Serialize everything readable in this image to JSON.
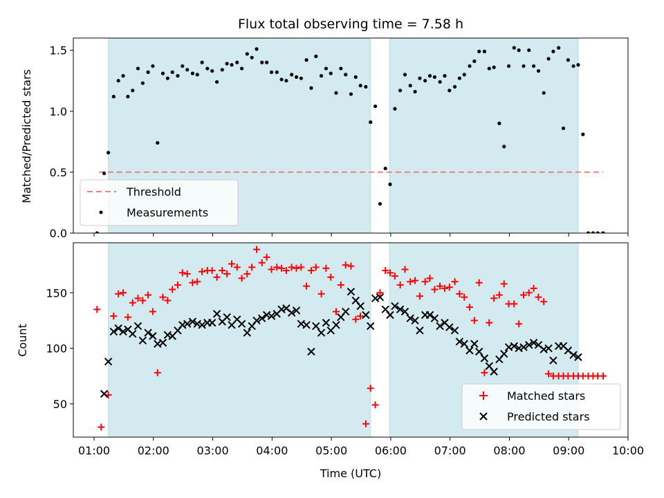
{
  "chart_data": [
    {
      "type": "scatter",
      "title": "Flux total observing time = 7.58 h",
      "xlabel": "",
      "ylabel": "Matched/Predicted stars",
      "xlim_hours": [
        0.65,
        10.0
      ],
      "ylim": [
        0,
        1.6
      ],
      "yticks": [
        0.0,
        0.5,
        1.0,
        1.5
      ],
      "yticklabels": [
        "0.0",
        "0.5",
        "1.0",
        "1.5"
      ],
      "shaded_intervals_hours": [
        [
          1.24,
          5.66
        ],
        [
          5.98,
          9.16
        ]
      ],
      "shade_color": "#d3eaf1",
      "legend_position": "lower-left",
      "threshold": {
        "name": "Threshold",
        "value": 0.5,
        "x_range_hours": [
          1.08,
          9.58
        ],
        "color": "#f08080"
      },
      "series": [
        {
          "name": "Measurements",
          "marker": "dot",
          "color": "#000000",
          "x_hours": [
            1.05,
            1.17,
            1.24,
            1.33,
            1.41,
            1.49,
            1.57,
            1.65,
            1.74,
            1.82,
            1.91,
            1.99,
            2.07,
            2.16,
            2.24,
            2.32,
            2.41,
            2.49,
            2.57,
            2.66,
            2.74,
            2.82,
            2.91,
            2.99,
            3.07,
            3.16,
            3.24,
            3.32,
            3.41,
            3.49,
            3.58,
            3.66,
            3.74,
            3.83,
            3.91,
            3.99,
            4.08,
            4.16,
            4.24,
            4.33,
            4.41,
            4.49,
            4.58,
            4.66,
            4.74,
            4.83,
            4.91,
            4.99,
            5.08,
            5.16,
            5.24,
            5.33,
            5.41,
            5.49,
            5.58,
            5.66,
            5.74,
            5.82,
            5.91,
            5.99,
            6.07,
            6.16,
            6.24,
            6.33,
            6.41,
            6.49,
            6.58,
            6.66,
            6.74,
            6.83,
            6.91,
            6.99,
            7.08,
            7.16,
            7.24,
            7.33,
            7.41,
            7.49,
            7.58,
            7.66,
            7.74,
            7.83,
            7.91,
            7.99,
            8.08,
            8.16,
            8.24,
            8.33,
            8.41,
            8.49,
            8.58,
            8.66,
            8.74,
            8.83,
            8.91,
            8.99,
            9.08,
            9.16,
            9.24,
            9.33,
            9.41,
            9.49,
            9.58
          ],
          "y": [
            0.0,
            0.49,
            0.66,
            1.12,
            1.25,
            1.29,
            1.12,
            1.17,
            1.35,
            1.23,
            1.32,
            1.37,
            0.74,
            1.31,
            1.27,
            1.32,
            1.29,
            1.37,
            1.34,
            1.31,
            1.3,
            1.4,
            1.35,
            1.33,
            1.24,
            1.34,
            1.39,
            1.38,
            1.4,
            1.35,
            1.47,
            1.44,
            1.51,
            1.4,
            1.4,
            1.32,
            1.32,
            1.26,
            1.25,
            1.3,
            1.28,
            1.27,
            1.42,
            1.19,
            1.45,
            1.29,
            1.35,
            1.31,
            1.15,
            1.35,
            1.3,
            1.14,
            1.28,
            1.21,
            1.2,
            0.91,
            1.04,
            0.24,
            0.53,
            0.4,
            1.02,
            1.17,
            1.3,
            1.21,
            1.16,
            1.27,
            1.25,
            1.29,
            1.28,
            1.24,
            1.29,
            1.17,
            1.2,
            1.27,
            1.3,
            1.37,
            1.41,
            1.49,
            1.49,
            1.35,
            1.36,
            0.9,
            0.71,
            1.37,
            1.52,
            1.5,
            1.37,
            1.5,
            1.37,
            1.33,
            1.15,
            1.43,
            1.49,
            1.52,
            0.86,
            1.42,
            1.37,
            1.38,
            0.81,
            0.0,
            0.0,
            0.0,
            0.0
          ]
        }
      ]
    },
    {
      "type": "scatter",
      "title": "",
      "xlabel": "Time (UTC)",
      "ylabel": "Count",
      "xlim_hours": [
        0.65,
        10.0
      ],
      "ylim": [
        20,
        195
      ],
      "yticks": [
        50,
        100,
        150
      ],
      "yticklabels": [
        "50",
        "100",
        "150"
      ],
      "xticks_hours": [
        1,
        2,
        3,
        4,
        5,
        6,
        7,
        8,
        9,
        10
      ],
      "xticklabels": [
        "01:00",
        "02:00",
        "03:00",
        "04:00",
        "05:00",
        "06:00",
        "07:00",
        "08:00",
        "09:00",
        "10:00"
      ],
      "shaded_intervals_hours": [
        [
          1.24,
          5.66
        ],
        [
          5.98,
          9.16
        ]
      ],
      "shade_color": "#d3eaf1",
      "legend_position": "lower-right",
      "series": [
        {
          "name": "Matched stars",
          "marker": "plus",
          "color": "#ff0000",
          "x_hours": [
            1.05,
            1.12,
            1.24,
            1.33,
            1.41,
            1.49,
            1.57,
            1.65,
            1.74,
            1.82,
            1.91,
            1.99,
            2.07,
            2.16,
            2.24,
            2.32,
            2.41,
            2.49,
            2.57,
            2.66,
            2.74,
            2.82,
            2.91,
            2.99,
            3.07,
            3.16,
            3.24,
            3.32,
            3.41,
            3.49,
            3.58,
            3.66,
            3.74,
            3.83,
            3.91,
            3.99,
            4.08,
            4.16,
            4.24,
            4.33,
            4.41,
            4.49,
            4.58,
            4.66,
            4.74,
            4.83,
            4.91,
            4.99,
            5.08,
            5.16,
            5.24,
            5.33,
            5.41,
            5.49,
            5.58,
            5.66,
            5.74,
            5.82,
            5.91,
            5.99,
            6.07,
            6.16,
            6.24,
            6.33,
            6.41,
            6.49,
            6.58,
            6.66,
            6.74,
            6.83,
            6.91,
            6.99,
            7.08,
            7.16,
            7.24,
            7.33,
            7.41,
            7.49,
            7.58,
            7.66,
            7.74,
            7.83,
            7.91,
            7.99,
            8.08,
            8.16,
            8.24,
            8.33,
            8.41,
            8.49,
            8.58,
            8.66,
            8.74,
            8.83,
            8.91,
            8.99,
            9.08,
            9.16,
            9.24,
            9.33,
            9.41,
            9.49,
            9.58
          ],
          "y": [
            135,
            29,
            58,
            129,
            149,
            150,
            128,
            141,
            145,
            143,
            148,
            133,
            78,
            146,
            143,
            153,
            157,
            168,
            167,
            159,
            160,
            169,
            170,
            170,
            164,
            170,
            167,
            176,
            173,
            163,
            167,
            173,
            189,
            177,
            182,
            171,
            173,
            172,
            170,
            173,
            172,
            173,
            156,
            170,
            173,
            149,
            172,
            164,
            133,
            157,
            175,
            174,
            126,
            129,
            32,
            64,
            49,
            150,
            170,
            168,
            165,
            157,
            171,
            160,
            161,
            147,
            160,
            163,
            153,
            156,
            154,
            155,
            160,
            149,
            146,
            137,
            125,
            159,
            78,
            123,
            145,
            148,
            158,
            140,
            140,
            122,
            148,
            150,
            154,
            146,
            142,
            77,
            75,
            75,
            75,
            75,
            75,
            75,
            75,
            75,
            75,
            75,
            75
          ],
          "x_hours_legend_fix": []
        },
        {
          "name": "Predicted stars",
          "marker": "x",
          "color": "#000000",
          "x_hours": [
            1.17,
            1.24,
            1.33,
            1.41,
            1.49,
            1.57,
            1.65,
            1.74,
            1.82,
            1.91,
            1.99,
            2.07,
            2.16,
            2.24,
            2.32,
            2.41,
            2.49,
            2.57,
            2.66,
            2.74,
            2.82,
            2.91,
            2.99,
            3.07,
            3.16,
            3.24,
            3.32,
            3.41,
            3.49,
            3.58,
            3.66,
            3.74,
            3.83,
            3.91,
            3.99,
            4.08,
            4.16,
            4.24,
            4.33,
            4.41,
            4.49,
            4.58,
            4.66,
            4.74,
            4.83,
            4.91,
            4.99,
            5.08,
            5.16,
            5.24,
            5.33,
            5.41,
            5.49,
            5.58,
            5.66,
            5.74,
            5.82,
            5.91,
            5.99,
            6.07,
            6.16,
            6.24,
            6.33,
            6.41,
            6.49,
            6.58,
            6.66,
            6.74,
            6.83,
            6.91,
            6.99,
            7.08,
            7.16,
            7.24,
            7.33,
            7.41,
            7.49,
            7.58,
            7.66,
            7.74,
            7.83,
            7.91,
            7.99,
            8.08,
            8.16,
            8.24,
            8.33,
            8.41,
            8.49,
            8.58,
            8.66,
            8.74,
            8.83,
            8.91,
            8.99,
            9.08,
            9.16
          ],
          "y": [
            59,
            88,
            115,
            118,
            115,
            117,
            113,
            120,
            107,
            114,
            111,
            104,
            105,
            112,
            111,
            116,
            121,
            122,
            124,
            122,
            121,
            123,
            123,
            131,
            124,
            128,
            121,
            126,
            122,
            114,
            120,
            125,
            127,
            130,
            129,
            131,
            135,
            136,
            132,
            134,
            122,
            121,
            97,
            120,
            114,
            123,
            116,
            121,
            128,
            133,
            151,
            143,
            138,
            130,
            120,
            145,
            146,
            135,
            130,
            138,
            135,
            133,
            127,
            125,
            116,
            130,
            130,
            127,
            120,
            123,
            119,
            116,
            106,
            104,
            98,
            104,
            97,
            91,
            84,
            79,
            90,
            95,
            101,
            102,
            100,
            101,
            103,
            105,
            103,
            99,
            100,
            89,
            102,
            102,
            98,
            94,
            92
          ],
          "x_hours_legend_fix": []
        }
      ]
    }
  ]
}
